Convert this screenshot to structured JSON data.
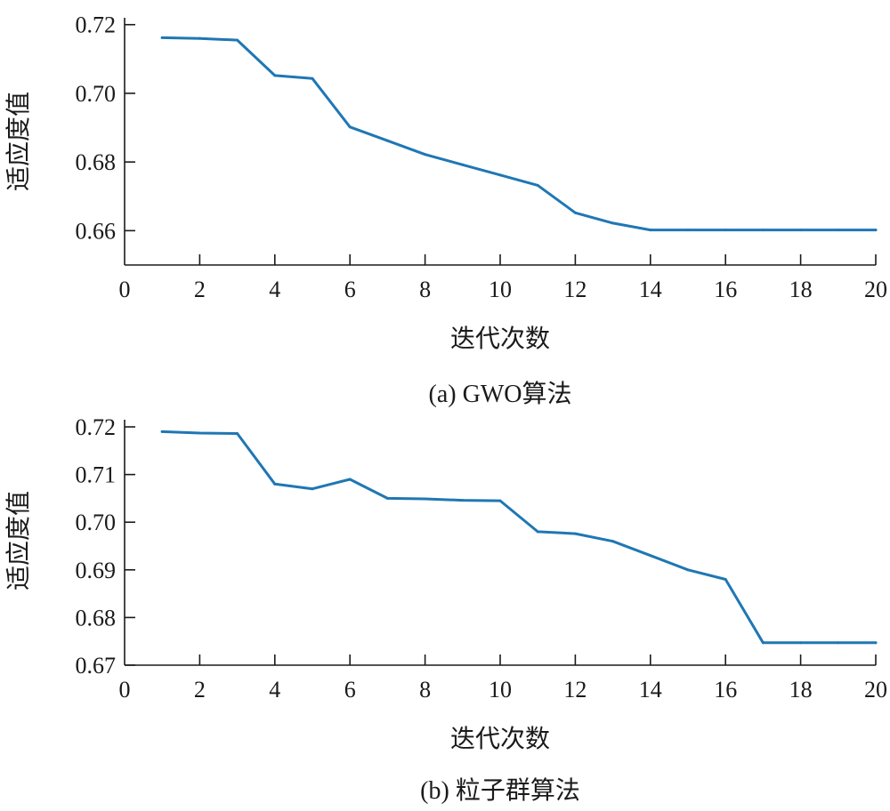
{
  "chart_data": [
    {
      "type": "line",
      "xlabel": "迭代次数",
      "ylabel": "适应度值",
      "caption": "(a) GWO算法",
      "xlim": [
        0,
        20
      ],
      "ylim": [
        0.65,
        0.722
      ],
      "xticks": [
        0,
        2,
        4,
        6,
        8,
        10,
        12,
        14,
        16,
        18,
        20
      ],
      "yticks": [
        0.66,
        0.68,
        0.7,
        0.72
      ],
      "ytick_decimals": 2,
      "line_color": "#1f77b4",
      "series": [
        {
          "x": [
            1,
            2,
            3,
            4,
            5,
            6,
            7,
            8,
            9,
            10,
            11,
            12,
            13,
            14,
            15,
            16,
            17,
            18,
            19,
            20
          ],
          "values": [
            0.7162,
            0.716,
            0.7155,
            0.7052,
            0.7043,
            0.6902,
            0.6862,
            0.6822,
            0.6792,
            0.6762,
            0.6732,
            0.6652,
            0.6622,
            0.6602,
            0.6602,
            0.6602,
            0.6602,
            0.6602,
            0.6602,
            0.6602
          ]
        }
      ]
    },
    {
      "type": "line",
      "xlabel": "迭代次数",
      "ylabel": "适应度值",
      "caption": "(b) 粒子群算法",
      "xlim": [
        0,
        20
      ],
      "ylim": [
        0.67,
        0.7215
      ],
      "xticks": [
        0,
        2,
        4,
        6,
        8,
        10,
        12,
        14,
        16,
        18,
        20
      ],
      "yticks": [
        0.67,
        0.68,
        0.69,
        0.7,
        0.71,
        0.72
      ],
      "ytick_decimals": 2,
      "line_color": "#1f77b4",
      "series": [
        {
          "x": [
            1,
            2,
            3,
            4,
            5,
            6,
            7,
            8,
            9,
            10,
            11,
            12,
            13,
            14,
            15,
            16,
            17,
            18,
            19,
            20
          ],
          "values": [
            0.719,
            0.7187,
            0.7186,
            0.708,
            0.707,
            0.709,
            0.705,
            0.7049,
            0.7046,
            0.7045,
            0.698,
            0.6976,
            0.696,
            0.693,
            0.69,
            0.688,
            0.6747,
            0.6747,
            0.6747,
            0.6747
          ]
        }
      ]
    }
  ]
}
